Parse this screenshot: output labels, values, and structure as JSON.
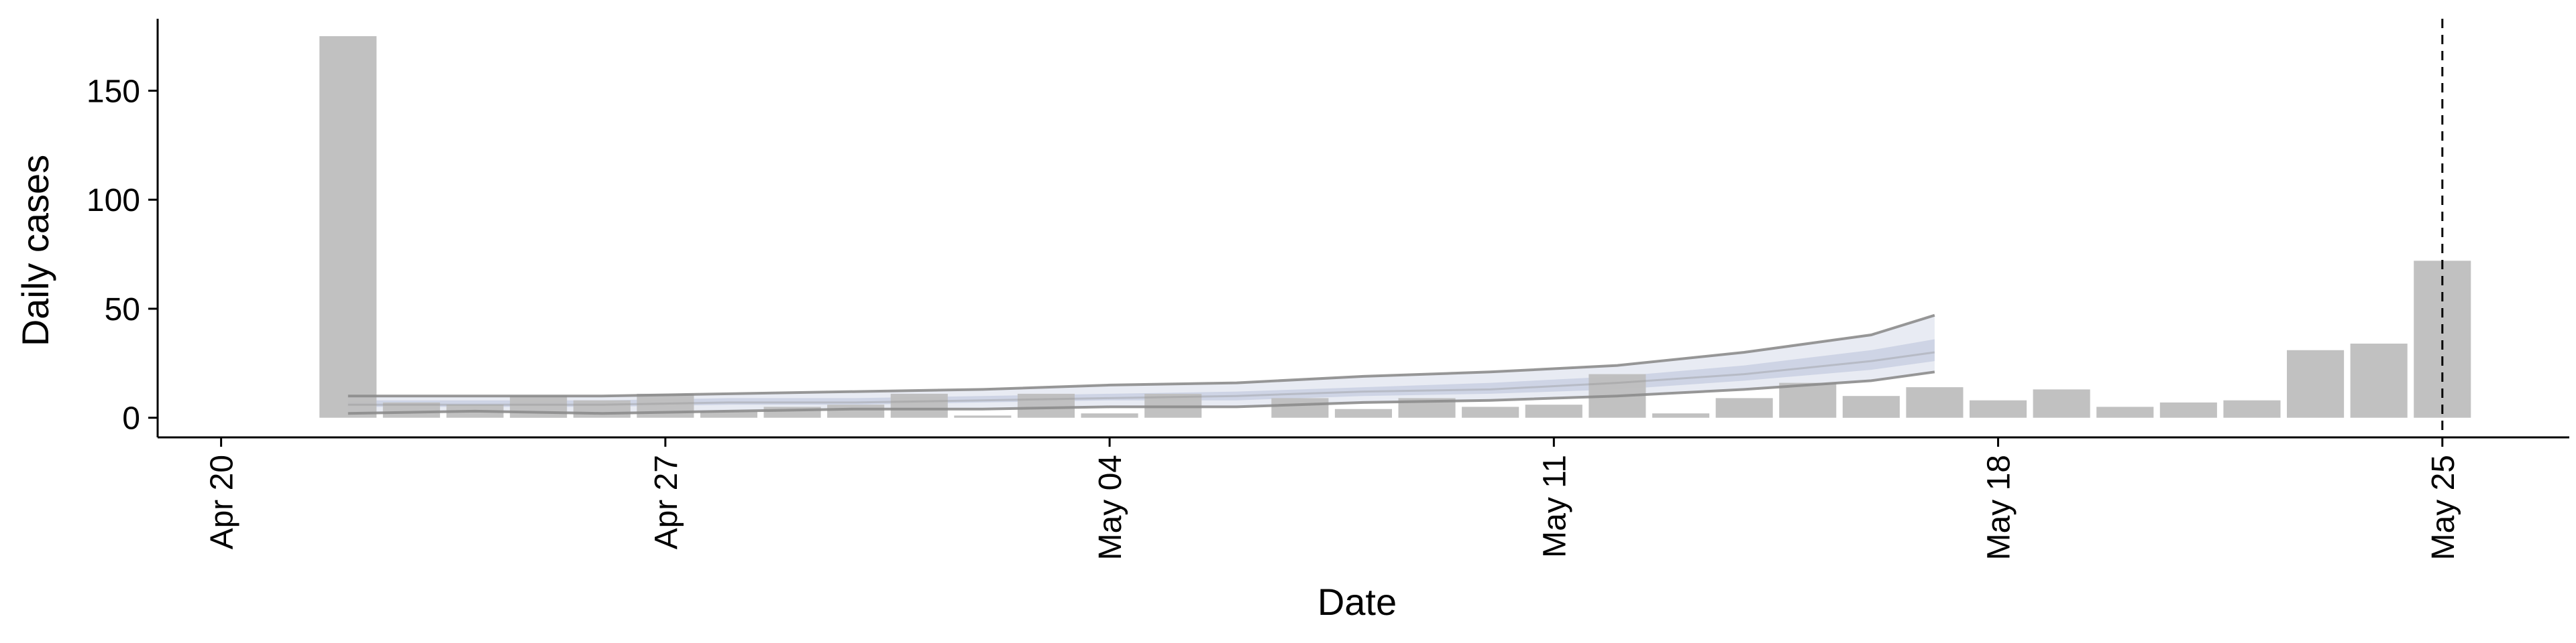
{
  "chart_data": {
    "type": "bar",
    "xlabel": "Date",
    "ylabel": "Daily cases",
    "x_ticks": [
      "Apr 20",
      "Apr 27",
      "May 04",
      "May 11",
      "May 18",
      "May 25"
    ],
    "y_ticks": [
      0,
      50,
      100,
      150
    ],
    "xlim": [
      "2020-04-19",
      "2020-05-27"
    ],
    "ylim": [
      -9,
      183
    ],
    "grid": false,
    "legend": "none",
    "colors": {
      "bars": "#bebebe",
      "ribbon_outer": "#e4e8f1",
      "ribbon_inner": "#c9d0e2",
      "bound_lines": "#8c8c8c",
      "vline": "#000000",
      "axes": "#000000"
    },
    "reference_line": {
      "x": "2020-05-25",
      "style": "dashed"
    },
    "bars": [
      {
        "date": "2020-04-22",
        "value": 175
      },
      {
        "date": "2020-04-23",
        "value": 7
      },
      {
        "date": "2020-04-24",
        "value": 6
      },
      {
        "date": "2020-04-25",
        "value": 10
      },
      {
        "date": "2020-04-26",
        "value": 8
      },
      {
        "date": "2020-04-27",
        "value": 11
      },
      {
        "date": "2020-04-28",
        "value": 3
      },
      {
        "date": "2020-04-29",
        "value": 5
      },
      {
        "date": "2020-04-30",
        "value": 6
      },
      {
        "date": "2020-05-01",
        "value": 11
      },
      {
        "date": "2020-05-02",
        "value": 1
      },
      {
        "date": "2020-05-03",
        "value": 11
      },
      {
        "date": "2020-05-04",
        "value": 2
      },
      {
        "date": "2020-05-05",
        "value": 11
      },
      {
        "date": "2020-05-06",
        "value": 0
      },
      {
        "date": "2020-05-07",
        "value": 9
      },
      {
        "date": "2020-05-08",
        "value": 4
      },
      {
        "date": "2020-05-09",
        "value": 9
      },
      {
        "date": "2020-05-10",
        "value": 5
      },
      {
        "date": "2020-05-11",
        "value": 6
      },
      {
        "date": "2020-05-12",
        "value": 20
      },
      {
        "date": "2020-05-13",
        "value": 2
      },
      {
        "date": "2020-05-14",
        "value": 9
      },
      {
        "date": "2020-05-15",
        "value": 16
      },
      {
        "date": "2020-05-16",
        "value": 10
      },
      {
        "date": "2020-05-17",
        "value": 14
      },
      {
        "date": "2020-05-18",
        "value": 8
      },
      {
        "date": "2020-05-19",
        "value": 13
      },
      {
        "date": "2020-05-20",
        "value": 5
      },
      {
        "date": "2020-05-21",
        "value": 7
      },
      {
        "date": "2020-05-22",
        "value": 8
      },
      {
        "date": "2020-05-23",
        "value": 31
      },
      {
        "date": "2020-05-24",
        "value": 34
      },
      {
        "date": "2020-05-25",
        "value": 72
      }
    ],
    "estimate_band": {
      "dates": [
        "2020-04-22",
        "2020-04-24",
        "2020-04-26",
        "2020-04-28",
        "2020-04-30",
        "2020-05-02",
        "2020-05-04",
        "2020-05-06",
        "2020-05-08",
        "2020-05-10",
        "2020-05-12",
        "2020-05-14",
        "2020-05-16",
        "2020-05-17"
      ],
      "outer_lower": [
        2,
        3,
        2,
        3,
        4,
        4,
        5,
        5,
        7,
        8,
        10,
        13,
        17,
        21
      ],
      "outer_upper": [
        10,
        10,
        10,
        11,
        12,
        13,
        15,
        16,
        19,
        21,
        24,
        30,
        38,
        47
      ],
      "inner_lower": [
        5,
        5,
        5,
        6,
        6,
        7,
        8,
        8,
        10,
        11,
        13,
        17,
        22,
        26
      ],
      "inner_upper": [
        8,
        8,
        8,
        9,
        9,
        10,
        11,
        12,
        14,
        16,
        19,
        24,
        31,
        36
      ],
      "median": [
        6,
        6,
        6,
        7,
        7,
        8,
        9,
        10,
        12,
        13,
        16,
        20,
        26,
        30
      ]
    }
  }
}
